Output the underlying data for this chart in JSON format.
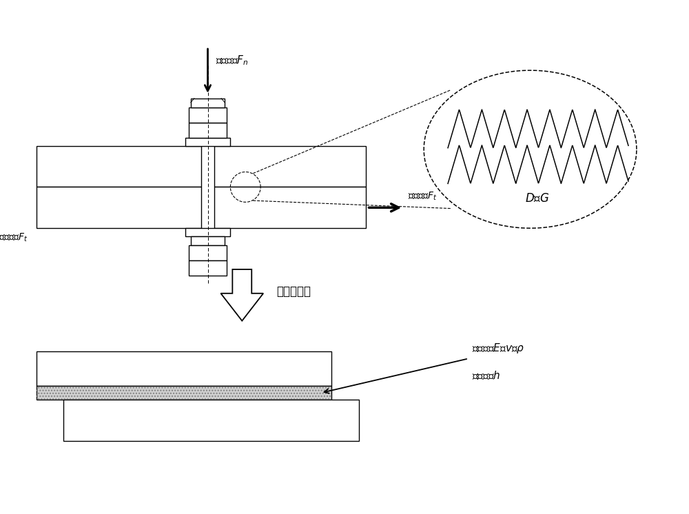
{
  "bg_color": "#ffffff",
  "line_color": "#000000",
  "label_fn": "法向载荷$F_n$",
  "label_ft_right": "切向载荷$F_t$",
  "label_ft_left": "切向载荷$F_t$",
  "label_dg": "$D$、$G$",
  "label_virtual": "虚拟薄层法",
  "label_material_1": "材料参数$E$、$v$、$\\rho$",
  "label_material_2": "几何参数$h$"
}
